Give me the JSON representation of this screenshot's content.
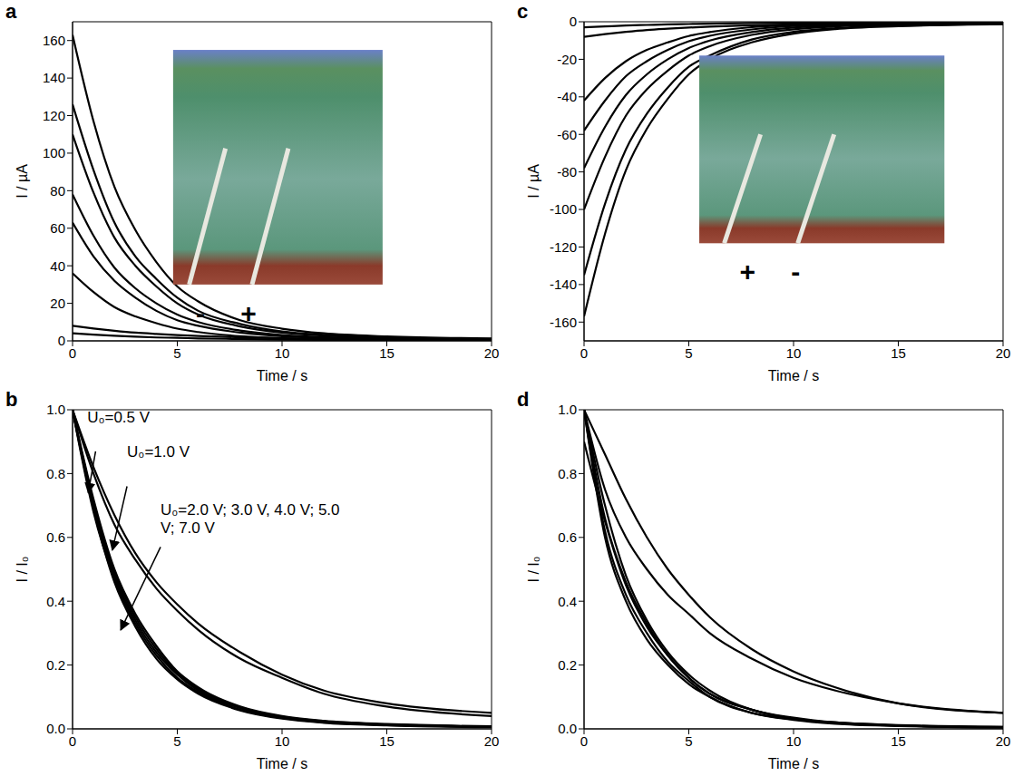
{
  "chart_data": [
    {
      "panel_label": "a",
      "type": "line",
      "x_label": "Time / s",
      "y_label": "I / µA",
      "xlim": [
        0,
        20
      ],
      "xticks": [
        0,
        5,
        10,
        15,
        20
      ],
      "ylim": [
        0,
        170
      ],
      "yticks": [
        0,
        20,
        40,
        60,
        80,
        100,
        120,
        140,
        160
      ],
      "inset_labels": [
        "-",
        "+"
      ],
      "x": [
        0,
        1,
        2,
        3,
        4,
        5,
        6,
        8,
        10,
        12,
        15,
        20
      ],
      "series": [
        {
          "color": "#000000",
          "values": [
            163,
            117,
            82,
            59,
            42,
            29,
            21,
            11,
            6.5,
            4,
            2.4,
            1.3
          ]
        },
        {
          "color": "#000000",
          "values": [
            126,
            91,
            63,
            45,
            33,
            23,
            16,
            9,
            5,
            3.2,
            1.9,
            1
          ]
        },
        {
          "color": "#000000",
          "values": [
            110,
            79,
            55,
            40,
            29,
            20,
            14,
            7.7,
            4.4,
            2.8,
            1.7,
            0.9
          ]
        },
        {
          "color": "#000000",
          "values": [
            78,
            56,
            39,
            28,
            20,
            14,
            10,
            5.5,
            3.1,
            2,
            1.2,
            0.6
          ]
        },
        {
          "color": "#000000",
          "values": [
            63,
            45,
            32,
            23,
            16,
            11,
            8,
            4.4,
            2.5,
            1.6,
            0.9,
            0.5
          ]
        },
        {
          "color": "#000000",
          "values": [
            36,
            26,
            18,
            13,
            9.4,
            6.5,
            4.7,
            2.5,
            1.4,
            0.9,
            0.5,
            0.3
          ]
        },
        {
          "color": "#000000",
          "values": [
            8,
            6.6,
            5.4,
            4.4,
            3.7,
            3.1,
            2.6,
            1.9,
            1.4,
            1,
            0.6,
            0.4
          ]
        },
        {
          "color": "#000000",
          "values": [
            4,
            3.3,
            2.7,
            2.2,
            1.8,
            1.6,
            1.3,
            1,
            0.7,
            0.5,
            0.3,
            0.2
          ]
        }
      ]
    },
    {
      "panel_label": "c",
      "type": "line",
      "x_label": "Time / s",
      "y_label": "I / µA",
      "xlim": [
        0,
        20
      ],
      "xticks": [
        0,
        5,
        10,
        15,
        20
      ],
      "ylim": [
        -170,
        0
      ],
      "yticks": [
        -160,
        -140,
        -120,
        -100,
        -80,
        -60,
        -40,
        -20,
        0
      ],
      "inset_labels": [
        "+",
        "-"
      ],
      "x": [
        0,
        1,
        2,
        3,
        4,
        5,
        6,
        8,
        10,
        12,
        15,
        20
      ],
      "series": [
        {
          "color": "#000000",
          "values": [
            -157,
            -113,
            -79,
            -57,
            -41,
            -28,
            -20,
            -11,
            -6.3,
            -3.9,
            -2.4,
            -1.3
          ]
        },
        {
          "color": "#000000",
          "values": [
            -135,
            -97,
            -68,
            -49,
            -35,
            -24,
            -18,
            -9.5,
            -5.4,
            -3.4,
            -2,
            -1.1
          ]
        },
        {
          "color": "#000000",
          "values": [
            -100,
            -72,
            -50,
            -36,
            -26,
            -18,
            -13,
            -7,
            -4,
            -2.5,
            -1.5,
            -0.8
          ]
        },
        {
          "color": "#000000",
          "values": [
            -78,
            -56,
            -39,
            -28,
            -20,
            -14,
            -10,
            -5.5,
            -3.1,
            -2,
            -1.2,
            -0.6
          ]
        },
        {
          "color": "#000000",
          "values": [
            -58,
            -42,
            -29,
            -21,
            -15,
            -10.4,
            -7.5,
            -4.1,
            -2.3,
            -1.5,
            -0.9,
            -0.5
          ]
        },
        {
          "color": "#000000",
          "values": [
            -42,
            -30,
            -21,
            -15,
            -11,
            -7.6,
            -5.5,
            -2.9,
            -1.7,
            -1.1,
            -0.6,
            -0.3
          ]
        },
        {
          "color": "#000000",
          "values": [
            -8,
            -6.6,
            -5.4,
            -4.4,
            -3.7,
            -3.1,
            -2.6,
            -1.9,
            -1.4,
            -1,
            -0.6,
            -0.4
          ]
        },
        {
          "color": "#000000",
          "values": [
            -3,
            -2.5,
            -2,
            -1.7,
            -1.4,
            -1.2,
            -1,
            -0.7,
            -0.5,
            -0.4,
            -0.2,
            -0.1
          ]
        }
      ]
    },
    {
      "panel_label": "b",
      "type": "line",
      "x_label": "Time / s",
      "y_label": "I / I₀",
      "xlim": [
        0,
        20
      ],
      "xticks": [
        0,
        5,
        10,
        15,
        20
      ],
      "ylim": [
        0,
        1
      ],
      "yticks": [
        {
          "value": 0,
          "label": "0.0"
        },
        0.2,
        0.4,
        0.6,
        0.8,
        {
          "value": 1,
          "label": "1.0"
        }
      ],
      "annotations": [
        {
          "text": "U₀=0.5 V"
        },
        {
          "text": "U₀=1.0 V"
        },
        {
          "text": "U₀=2.0 V; 3.0 V, 4.0 V; 5.0 V; 7.0 V"
        }
      ],
      "x": [
        0,
        1,
        2,
        3,
        4,
        5,
        6,
        8,
        10,
        12,
        15,
        20
      ],
      "series": [
        {
          "color": "#000000",
          "values": [
            1,
            0.82,
            0.67,
            0.55,
            0.46,
            0.39,
            0.33,
            0.24,
            0.17,
            0.12,
            0.08,
            0.05
          ]
        },
        {
          "color": "#000000",
          "values": [
            1,
            0.8,
            0.64,
            0.53,
            0.44,
            0.37,
            0.31,
            0.22,
            0.16,
            0.11,
            0.07,
            0.04
          ]
        },
        {
          "color": "#000000",
          "values": [
            1,
            0.72,
            0.5,
            0.36,
            0.26,
            0.18,
            0.13,
            0.07,
            0.04,
            0.025,
            0.015,
            0.008
          ]
        },
        {
          "color": "#000000",
          "values": [
            1,
            0.7,
            0.48,
            0.34,
            0.24,
            0.17,
            0.12,
            0.065,
            0.037,
            0.022,
            0.013,
            0.007
          ]
        },
        {
          "color": "#000000",
          "values": [
            1,
            0.68,
            0.47,
            0.33,
            0.23,
            0.16,
            0.115,
            0.06,
            0.034,
            0.02,
            0.012,
            0.006
          ]
        },
        {
          "color": "#000000",
          "values": [
            1,
            0.71,
            0.49,
            0.35,
            0.25,
            0.175,
            0.125,
            0.068,
            0.038,
            0.024,
            0.014,
            0.007
          ]
        },
        {
          "color": "#000000",
          "values": [
            1,
            0.69,
            0.46,
            0.32,
            0.22,
            0.155,
            0.11,
            0.058,
            0.032,
            0.019,
            0.011,
            0.005
          ]
        }
      ]
    },
    {
      "panel_label": "d",
      "type": "line",
      "x_label": "Time / s",
      "y_label": "I / I₀",
      "xlim": [
        0,
        20
      ],
      "xticks": [
        0,
        5,
        10,
        15,
        20
      ],
      "ylim": [
        0,
        1
      ],
      "yticks": [
        {
          "value": 0,
          "label": "0.0"
        },
        0.2,
        0.4,
        0.6,
        0.8,
        {
          "value": 1,
          "label": "1.0"
        }
      ],
      "x": [
        0,
        1,
        2,
        3,
        4,
        5,
        6,
        8,
        10,
        12,
        15,
        20
      ],
      "series": [
        {
          "color": "#000000",
          "values": [
            1,
            0.86,
            0.72,
            0.6,
            0.5,
            0.42,
            0.35,
            0.25,
            0.18,
            0.13,
            0.08,
            0.05
          ]
        },
        {
          "color": "#000000",
          "values": [
            1,
            0.75,
            0.6,
            0.5,
            0.42,
            0.36,
            0.3,
            0.22,
            0.16,
            0.12,
            0.08,
            0.05
          ]
        },
        {
          "color": "#000000",
          "values": [
            1,
            0.7,
            0.48,
            0.34,
            0.24,
            0.17,
            0.12,
            0.06,
            0.035,
            0.02,
            0.012,
            0.006
          ]
        },
        {
          "color": "#000000",
          "values": [
            0.9,
            0.65,
            0.45,
            0.32,
            0.23,
            0.16,
            0.11,
            0.06,
            0.03,
            0.02,
            0.01,
            0.005
          ]
        },
        {
          "color": "#000000",
          "values": [
            1,
            0.62,
            0.42,
            0.3,
            0.21,
            0.15,
            0.1,
            0.05,
            0.03,
            0.018,
            0.01,
            0.005
          ]
        },
        {
          "color": "#000000",
          "values": [
            1,
            0.66,
            0.46,
            0.33,
            0.23,
            0.16,
            0.11,
            0.06,
            0.032,
            0.02,
            0.011,
            0.006
          ]
        },
        {
          "color": "#000000",
          "values": [
            1,
            0.6,
            0.4,
            0.28,
            0.2,
            0.14,
            0.1,
            0.05,
            0.028,
            0.016,
            0.009,
            0.004
          ]
        }
      ]
    }
  ]
}
